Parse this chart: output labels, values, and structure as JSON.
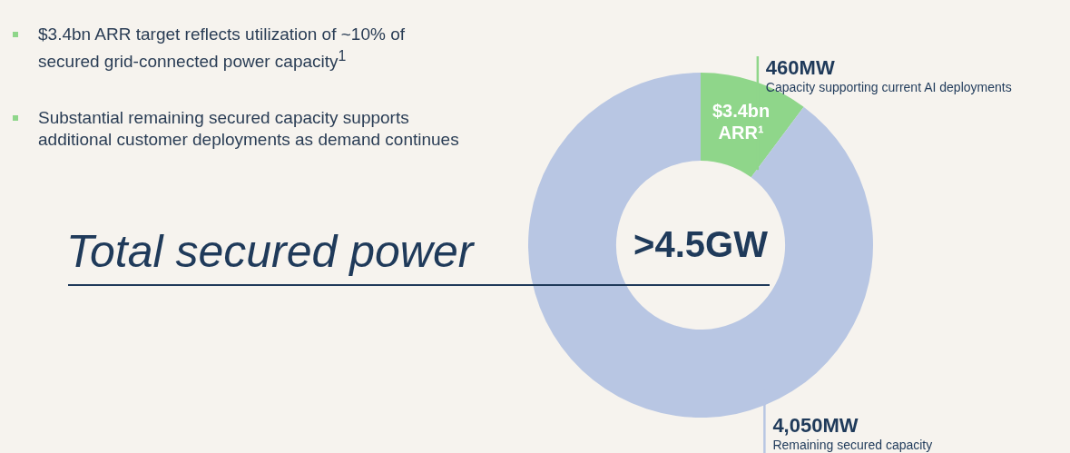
{
  "chart_data": {
    "type": "donut",
    "title": "Total secured power",
    "subtitle": ">4.5GW",
    "categories": [
      "Capacity supporting current AI deployments",
      "Remaining secured capacity"
    ],
    "values": [
      460,
      4050
    ],
    "value_labels": [
      "460MW",
      "4,050MW"
    ],
    "colors": [
      "#8fd68a",
      "#b8c6e3"
    ],
    "annotations": [
      "$3.4bn ARR target reflects utilization of ~10% of secured grid-connected power capacity$^{1}$",
      "Substantial remaining secured capacity supports additional customer deployments as demand continues",
      {
        "text": "$3.4bn ARR¹",
        "x": "Capacity supporting current AI deployments"
      }
    ],
    "legend": false
  }
}
